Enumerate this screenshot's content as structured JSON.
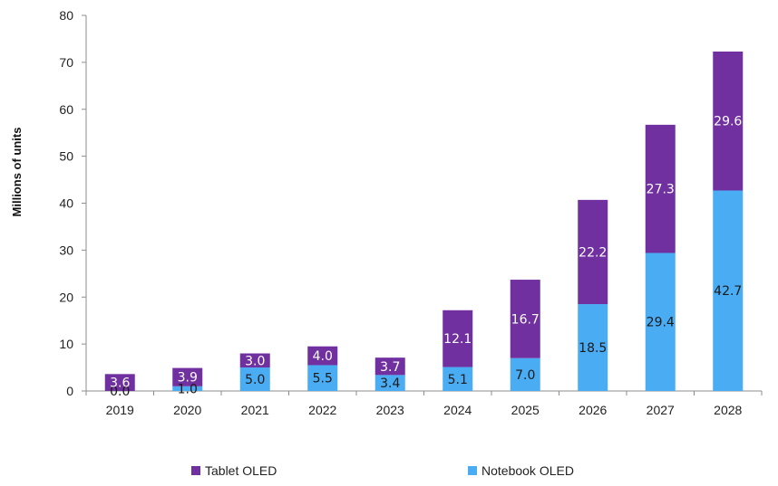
{
  "chart_data": {
    "type": "bar",
    "stacked": true,
    "ylabel": "Millions of units",
    "xlabel": "",
    "title": "",
    "ylim": [
      0,
      80
    ],
    "yticks": [
      0,
      10,
      20,
      30,
      40,
      50,
      60,
      70,
      80
    ],
    "categories": [
      "2019",
      "2020",
      "2021",
      "2022",
      "2023",
      "2024",
      "2025",
      "2026",
      "2027",
      "2028"
    ],
    "series": [
      {
        "name": "Notebook OLED",
        "color": "#4AACF3",
        "label_color": "#1a1a1a",
        "values": [
          0.0,
          1.0,
          5.0,
          5.5,
          3.4,
          5.1,
          7.0,
          18.5,
          29.4,
          42.7
        ],
        "labels": [
          "0.0",
          "1.0",
          "5.0",
          "5.5",
          "3.4",
          "5.1",
          "7.0",
          "18.5",
          "29.4",
          "42.7"
        ]
      },
      {
        "name": "Tablet OLED",
        "color": "#7030A0",
        "label_color": "#ffffff",
        "values": [
          3.6,
          3.9,
          3.0,
          4.0,
          3.7,
          12.1,
          16.7,
          22.2,
          27.3,
          29.6
        ],
        "labels": [
          "3.6",
          "3.9",
          "3.0",
          "4.0",
          "3.7",
          "12.1",
          "16.7",
          "22.2",
          "27.3",
          "29.6"
        ]
      }
    ],
    "grid": false,
    "legend_position": "bottom"
  }
}
